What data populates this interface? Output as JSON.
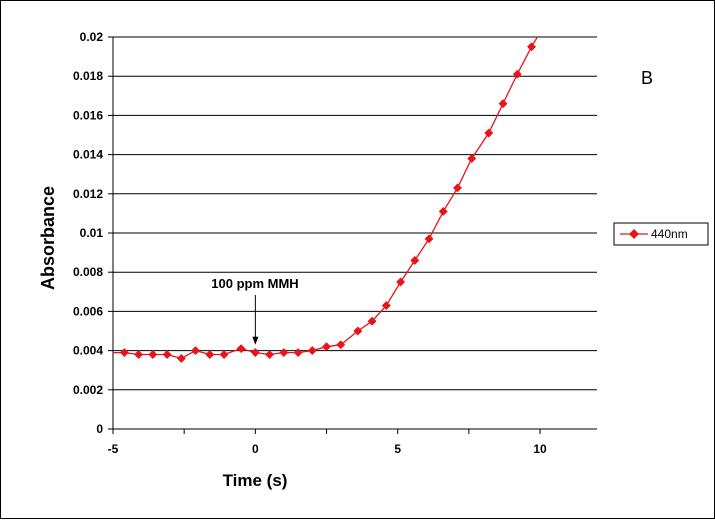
{
  "chart_data": {
    "type": "line",
    "xlabel": "Time (s)",
    "ylabel": "Absorbance",
    "panel_label": "B",
    "xlim": [
      -5,
      12
    ],
    "ylim": [
      0,
      0.02
    ],
    "x_ticks": [
      "-5",
      "0",
      "5",
      "10"
    ],
    "y_ticks": [
      "0",
      "0.002",
      "0.004",
      "0.006",
      "0.008",
      "0.01",
      "0.012",
      "0.014",
      "0.016",
      "0.018",
      "0.02"
    ],
    "grid": "horizontal major gridlines",
    "legend_position": "right",
    "series": [
      {
        "name": "440nm",
        "color": "#e8141a",
        "marker": "diamond",
        "x": [
          -4.6,
          -4.1,
          -3.6,
          -3.1,
          -2.6,
          -2.1,
          -1.6,
          -1.1,
          -0.5,
          0.0,
          0.5,
          1.0,
          1.5,
          2.0,
          2.5,
          3.0,
          3.6,
          4.1,
          4.6,
          5.1,
          5.6,
          6.1,
          6.6,
          7.1,
          7.6,
          8.2,
          8.7,
          9.2,
          9.7
        ],
        "y": [
          0.0039,
          0.0038,
          0.0038,
          0.0038,
          0.0036,
          0.004,
          0.0038,
          0.0038,
          0.0041,
          0.0039,
          0.0038,
          0.0039,
          0.0039,
          0.004,
          0.0042,
          0.0043,
          0.005,
          0.0055,
          0.0063,
          0.0075,
          0.0086,
          0.0097,
          0.0111,
          0.0123,
          0.0138,
          0.0151,
          0.0166,
          0.0181,
          0.0195
        ]
      }
    ],
    "line_ends": {
      "start": [
        -5,
        0.0039
      ],
      "end": [
        9.95,
        0.0201
      ]
    },
    "annotation": {
      "text": "100 ppm MMH",
      "arrow_target": [
        0,
        0.0043
      ]
    }
  }
}
